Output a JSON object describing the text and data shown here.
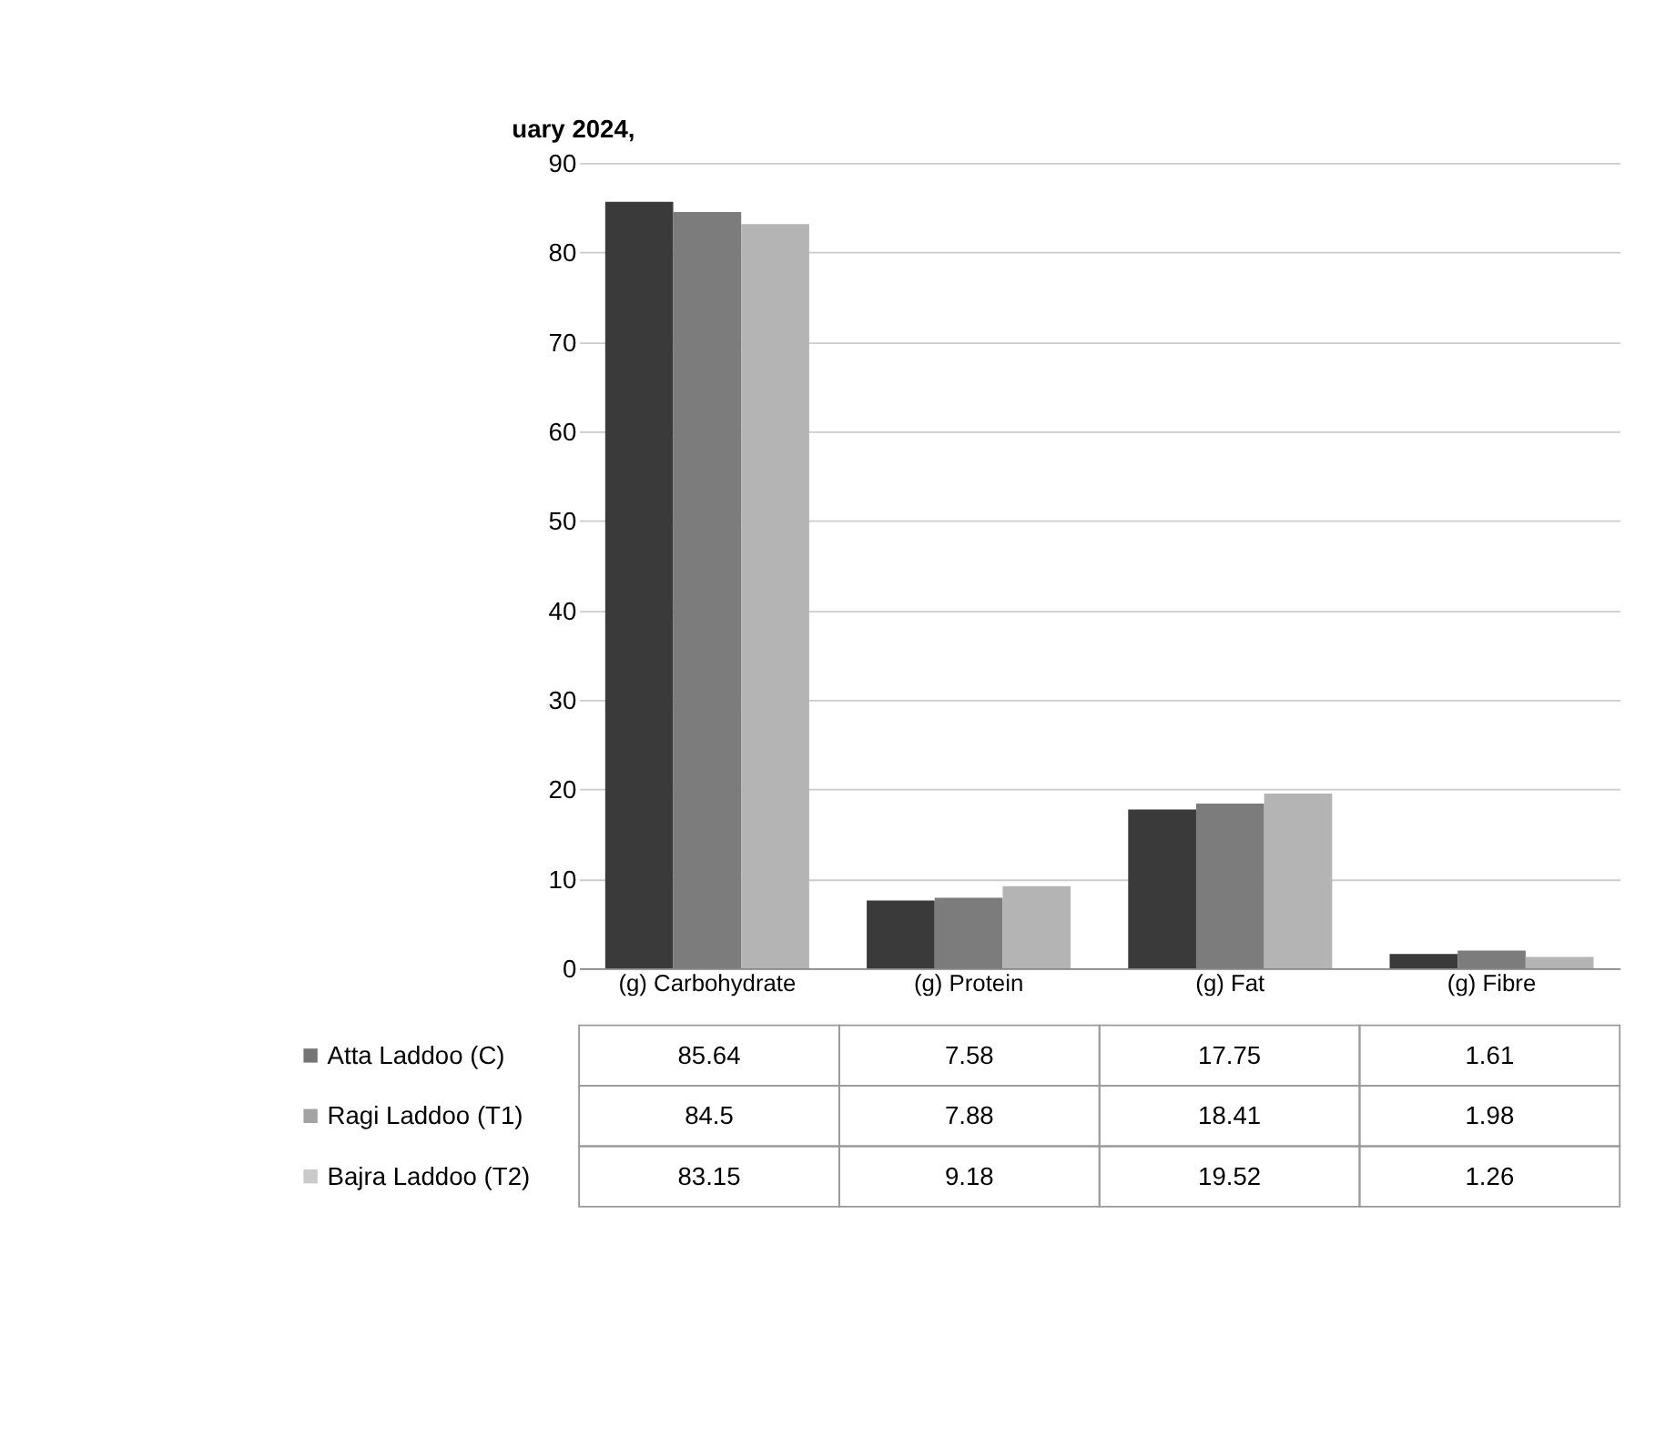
{
  "chart_data": {
    "type": "bar",
    "categories": [
      "(g) Carbohydrate",
      "(g) Protein",
      "(g) Fat",
      "(g) Fibre"
    ],
    "series": [
      {
        "name": "Atta Laddoo (C)",
        "color": "#3a3a3a",
        "values": [
          85.64,
          7.58,
          17.75,
          1.61
        ]
      },
      {
        "name": "Ragi Laddoo (T1)",
        "color": "#7c7c7c",
        "values": [
          84.5,
          7.88,
          18.41,
          1.98
        ]
      },
      {
        "name": "Bajra Laddoo (T2)",
        "color": "#b4b4b4",
        "values": [
          83.15,
          9.18,
          19.52,
          1.26
        ]
      }
    ],
    "ylim": [
      0,
      90
    ],
    "yticks": [
      0,
      10,
      20,
      30,
      40,
      50,
      60,
      70,
      80,
      90
    ],
    "grid": "y",
    "data_labels": true,
    "legend": "bottom",
    "annotations": [
      "uary 2024,"
    ]
  }
}
